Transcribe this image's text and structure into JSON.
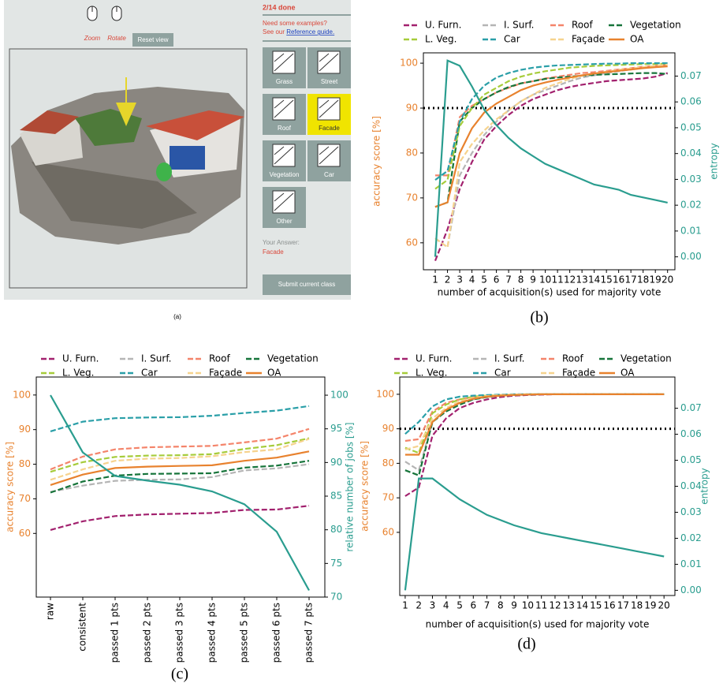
{
  "ui": {
    "caption": "(a)",
    "zoom": "Zoom",
    "rotate": "Rotate",
    "reset": "Reset view",
    "progress": "2/14 done",
    "examples": "Need some examples?",
    "see_our": "See our",
    "guide": "Reference guide.",
    "buttons": [
      "Grass",
      "Street",
      "Roof",
      "Facade",
      "Vegetation",
      "Car",
      "Other"
    ],
    "answer_label": "Your Answer:",
    "answer": "Facade",
    "submit": "Submit current class"
  },
  "chart_data": [
    {
      "type": "line",
      "caption": "(b)",
      "xlabel": "number of acquisition(s) used for majority vote",
      "ylabel": "accuracy score [%]",
      "y2label": "entropy",
      "x": [
        1,
        2,
        3,
        4,
        5,
        6,
        7,
        8,
        9,
        10,
        11,
        12,
        13,
        14,
        15,
        16,
        17,
        18,
        19,
        20
      ],
      "xlim": [
        0.03,
        20.6
      ],
      "xticks": [
        1,
        2,
        3,
        4,
        5,
        6,
        7,
        8,
        9,
        10,
        11,
        12,
        13,
        14,
        15,
        16,
        17,
        18,
        19,
        20
      ],
      "ylim": [
        54,
        102.3
      ],
      "yticks": [
        60,
        70,
        80,
        90,
        100
      ],
      "y2lim": [
        -0.005,
        0.079
      ],
      "y2ticks": [
        {
          "value": 0,
          "label": "0.00"
        },
        0.01,
        0.02,
        0.03,
        0.04,
        0.05,
        0.06,
        0.07
      ],
      "threshold": 90,
      "grid": false,
      "series": [
        {
          "name": "U. Furn.",
          "color": "#a2216e",
          "style": "dashed",
          "values": [
            56,
            63,
            72,
            78,
            83,
            86,
            88.5,
            90.5,
            92,
            93,
            94,
            94.7,
            95.2,
            95.6,
            96,
            96.2,
            96.4,
            96.6,
            97,
            97.8
          ]
        },
        {
          "name": "I. Surf.",
          "color": "#b5b5b5",
          "style": "dashed",
          "values": [
            61,
            59,
            75,
            80,
            84,
            87,
            89.5,
            91.5,
            93,
            94,
            95,
            96,
            96.8,
            97.3,
            97.8,
            98.2,
            98.6,
            99,
            99.3,
            99.6
          ]
        },
        {
          "name": "Roof",
          "color": "#f4846a",
          "style": "dashed",
          "values": [
            75,
            75,
            88,
            90.5,
            92,
            93.5,
            94.5,
            95.5,
            96,
            96.6,
            97,
            97.4,
            97.8,
            98,
            98.3,
            98.6,
            98.9,
            99.2,
            99.4,
            99.6
          ]
        },
        {
          "name": "Vegetation",
          "color": "#16743a",
          "style": "dashed",
          "values": [
            68,
            69,
            87,
            90,
            92,
            93.5,
            94.7,
            95.5,
            96,
            96.5,
            96.8,
            97,
            97.2,
            97.4,
            97.5,
            97.6,
            97.7,
            97.8,
            97.8,
            97.6
          ]
        },
        {
          "name": "L. Veg.",
          "color": "#a6cc3a",
          "style": "dashed",
          "values": [
            72,
            74,
            86,
            90,
            93,
            94.5,
            96,
            97,
            97.7,
            98.2,
            98.6,
            99,
            99.2,
            99.4,
            99.5,
            99.6,
            99.7,
            99.8,
            99.8,
            99.9
          ]
        },
        {
          "name": "Car",
          "color": "#2a9fa8",
          "style": "dashed",
          "values": [
            74,
            76,
            87,
            92,
            95,
            96.8,
            97.8,
            98.5,
            99,
            99.3,
            99.5,
            99.6,
            99.7,
            99.8,
            99.9,
            99.9,
            100,
            100,
            100,
            100
          ]
        },
        {
          "name": "Façade",
          "color": "#f6d38e",
          "style": "dashed",
          "values": [
            61,
            59,
            78,
            82,
            85,
            87.5,
            89.5,
            91.5,
            93,
            94.5,
            95.5,
            96.5,
            97.2,
            97.7,
            98.1,
            98.5,
            98.8,
            99.1,
            99.4,
            99.7
          ]
        },
        {
          "name": "OA",
          "color": "#e8822e",
          "style": "solid",
          "values": [
            68,
            69,
            80,
            85.5,
            89,
            91,
            92.5,
            94,
            95,
            95.7,
            96.3,
            96.8,
            97.3,
            97.7,
            98,
            98.3,
            98.6,
            98.9,
            99.1,
            99.3
          ]
        },
        {
          "color": "#2a9d8f",
          "style": "solid",
          "axis": "y2",
          "values": [
            0,
            0.076,
            0.074,
            0.066,
            0.057,
            0.051,
            0.046,
            0.042,
            0.039,
            0.036,
            0.034,
            0.032,
            0.03,
            0.028,
            0.027,
            0.026,
            0.024,
            0.023,
            0.022,
            0.021
          ]
        }
      ]
    },
    {
      "type": "line",
      "caption": "(c)",
      "ylabel": "accuracy score [%]",
      "y2label": "relative number of jobs [%]",
      "categories": [
        "raw",
        "consistent",
        "passed 1 pts",
        "passed 2 pts",
        "passed 3 pts",
        "passed 4 pts",
        "passed 5 pts",
        "passed 6 pts",
        "passed 7 pts"
      ],
      "ylim": [
        41.6,
        105.2
      ],
      "yticks": [
        60,
        70,
        80,
        90,
        100
      ],
      "y2lim": [
        70,
        102.7
      ],
      "y2ticks": [
        70,
        75,
        80,
        85,
        90,
        95,
        100
      ],
      "grid": false,
      "series": [
        {
          "name": "U. Furn.",
          "color": "#a2216e",
          "style": "dashed",
          "values": [
            61,
            63.5,
            65,
            65.5,
            65.7,
            65.9,
            66.8,
            66.9,
            68
          ]
        },
        {
          "name": "I. Surf.",
          "color": "#b5b5b5",
          "style": "dashed",
          "values": [
            72,
            73.8,
            75.2,
            75.5,
            75.6,
            76.3,
            78.2,
            78.8,
            80
          ]
        },
        {
          "name": "Roof",
          "color": "#f4846a",
          "style": "dashed",
          "values": [
            78.5,
            82.2,
            84.3,
            84.9,
            85.1,
            85.3,
            86.3,
            87.4,
            90.2
          ]
        },
        {
          "name": "Vegetation",
          "color": "#16743a",
          "style": "dashed",
          "values": [
            71.8,
            75,
            76.7,
            77.2,
            77.3,
            77.4,
            79,
            79.6,
            81
          ]
        },
        {
          "name": "L. Veg.",
          "color": "#a6cc3a",
          "style": "dashed",
          "values": [
            77.8,
            80.6,
            82.1,
            82.5,
            82.6,
            82.9,
            84.4,
            85.5,
            87.5
          ]
        },
        {
          "name": "Car",
          "color": "#2a9fa8",
          "style": "dashed",
          "values": [
            89.5,
            92.3,
            93.3,
            93.5,
            93.6,
            94,
            94.8,
            95.5,
            96.8
          ]
        },
        {
          "name": "Façade",
          "color": "#f6d38e",
          "style": "dashed",
          "values": [
            75.5,
            78.5,
            81,
            81.6,
            81.8,
            82.3,
            83.5,
            84.3,
            87.3
          ]
        },
        {
          "name": "OA",
          "color": "#e8822e",
          "style": "solid",
          "values": [
            74,
            77,
            78.9,
            79.3,
            79.5,
            79.7,
            81,
            81.9,
            83.7
          ]
        },
        {
          "color": "#2a9d8f",
          "style": "solid",
          "axis": "y2",
          "values": [
            100,
            91.5,
            88,
            87.3,
            86.7,
            85.7,
            83.8,
            79.7,
            71
          ]
        }
      ]
    },
    {
      "type": "line",
      "caption": "(d)",
      "xlabel": "number of acquisition(s) used for majority vote",
      "ylabel": "accuracy score [%]",
      "y2label": "entropy",
      "x": [
        1,
        2,
        3,
        4,
        5,
        6,
        7,
        8,
        9,
        10,
        11,
        12,
        13,
        14,
        15,
        16,
        17,
        18,
        19,
        20
      ],
      "xlim": [
        0.6,
        20.8
      ],
      "xticks": [
        1,
        2,
        3,
        4,
        5,
        6,
        7,
        8,
        9,
        10,
        11,
        12,
        13,
        14,
        15,
        16,
        17,
        18,
        19,
        20
      ],
      "ylim": [
        41.7,
        105
      ],
      "yticks": [
        60,
        70,
        80,
        90,
        100
      ],
      "y2lim": [
        -0.002,
        0.082
      ],
      "y2ticks": [
        {
          "value": 0,
          "label": "0.00"
        },
        0.01,
        0.02,
        0.03,
        0.04,
        0.05,
        0.06,
        0.07
      ],
      "threshold": 90,
      "grid": false,
      "series": [
        {
          "name": "U. Furn.",
          "color": "#a2216e",
          "style": "dashed",
          "values": [
            70.5,
            73,
            88,
            93,
            96,
            97.5,
            98.5,
            99.2,
            99.6,
            99.8,
            99.9,
            100,
            100,
            100,
            100,
            100,
            100,
            100,
            100,
            100
          ]
        },
        {
          "name": "I. Surf.",
          "color": "#b5b5b5",
          "style": "dashed",
          "values": [
            80.5,
            78,
            92,
            95.5,
            97.5,
            98.5,
            99.2,
            99.6,
            99.8,
            99.9,
            100,
            100,
            100,
            100,
            100,
            100,
            100,
            100,
            100,
            100
          ]
        },
        {
          "name": "Roof",
          "color": "#f4846a",
          "style": "dashed",
          "values": [
            86.5,
            87,
            95,
            97.5,
            98.5,
            99.2,
            99.6,
            99.8,
            99.9,
            100,
            100,
            100,
            100,
            100,
            100,
            100,
            100,
            100,
            100,
            100
          ]
        },
        {
          "name": "Vegetation",
          "color": "#16743a",
          "style": "dashed",
          "values": [
            78,
            76.5,
            92,
            95,
            97,
            98.5,
            99.2,
            99.6,
            99.8,
            99.9,
            100,
            100,
            100,
            100,
            100,
            100,
            100,
            100,
            100,
            100
          ]
        },
        {
          "name": "L. Veg.",
          "color": "#a6cc3a",
          "style": "dashed",
          "values": [
            84.5,
            83,
            94.5,
            97,
            98.5,
            99.3,
            99.6,
            99.8,
            99.9,
            100,
            100,
            100,
            100,
            100,
            100,
            100,
            100,
            100,
            100,
            100
          ]
        },
        {
          "name": "Car",
          "color": "#2a9fa8",
          "style": "dashed",
          "values": [
            88.5,
            92,
            96.5,
            98.5,
            99.3,
            99.6,
            99.8,
            99.9,
            100,
            100,
            100,
            100,
            100,
            100,
            100,
            100,
            100,
            100,
            100,
            100
          ]
        },
        {
          "name": "Façade",
          "color": "#f6d38e",
          "style": "dashed",
          "values": [
            84,
            85,
            93,
            96,
            98,
            99,
            99.5,
            99.8,
            99.9,
            100,
            100,
            100,
            100,
            100,
            100,
            100,
            100,
            100,
            100,
            100
          ]
        },
        {
          "name": "OA",
          "color": "#e8822e",
          "style": "solid",
          "values": [
            82.5,
            82.5,
            92,
            95.5,
            97.5,
            98.7,
            99.3,
            99.6,
            99.8,
            99.9,
            100,
            100,
            100,
            100,
            100,
            100,
            100,
            100,
            100,
            100
          ]
        },
        {
          "color": "#2a9d8f",
          "style": "solid",
          "axis": "y2",
          "values": [
            0,
            0.043,
            0.043,
            0.039,
            0.035,
            0.032,
            0.029,
            0.027,
            0.025,
            0.0235,
            0.022,
            0.021,
            0.02,
            0.019,
            0.018,
            0.017,
            0.016,
            0.015,
            0.014,
            0.013
          ]
        }
      ]
    }
  ]
}
